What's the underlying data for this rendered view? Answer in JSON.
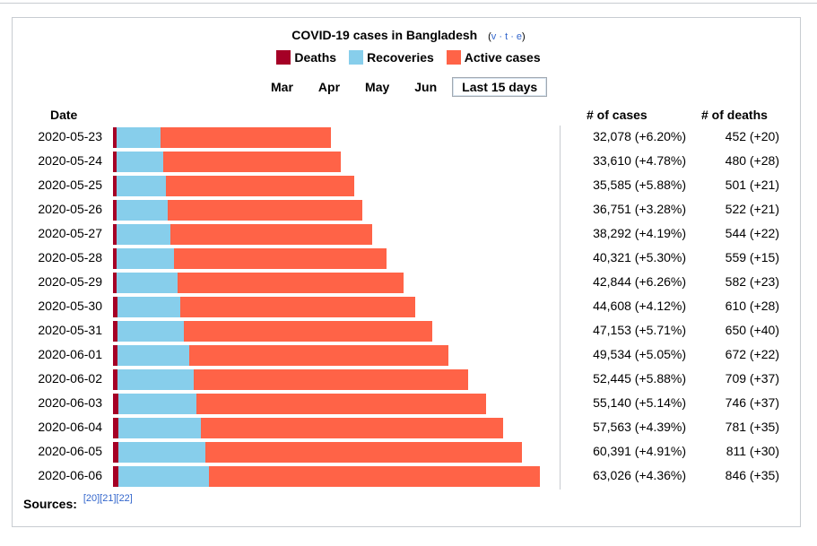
{
  "title": "COVID-19 cases in Bangladesh",
  "vte": {
    "open": "(",
    "v": "v",
    "t": "t",
    "e": "e",
    "sep": " · ",
    "close": ")"
  },
  "legend": {
    "deaths": "Deaths",
    "recoveries": "Recoveries",
    "active": "Active cases"
  },
  "colors": {
    "deaths": "#a50026",
    "recoveries": "#87ceeb",
    "active": "#ff6347"
  },
  "tabs": [
    {
      "label": "Mar",
      "active": false
    },
    {
      "label": "Apr",
      "active": false
    },
    {
      "label": "May",
      "active": false
    },
    {
      "label": "Jun",
      "active": false
    },
    {
      "label": "Last 15 days",
      "active": true
    }
  ],
  "headers": {
    "date": "Date",
    "cases": "# of cases",
    "deaths": "# of deaths"
  },
  "sources": {
    "label": "Sources:",
    "refs": "[20][21][22]"
  },
  "chart_data": {
    "type": "bar",
    "orientation": "horizontal",
    "stacked": true,
    "title": "COVID-19 cases in Bangladesh",
    "categories": [
      "2020-05-23",
      "2020-05-24",
      "2020-05-25",
      "2020-05-26",
      "2020-05-27",
      "2020-05-28",
      "2020-05-29",
      "2020-05-30",
      "2020-05-31",
      "2020-06-01",
      "2020-06-02",
      "2020-06-03",
      "2020-06-04",
      "2020-06-05",
      "2020-06-06"
    ],
    "series": [
      {
        "name": "Deaths",
        "values": [
          452,
          480,
          501,
          522,
          544,
          559,
          582,
          610,
          650,
          672,
          709,
          746,
          781,
          811,
          846
        ]
      },
      {
        "name": "Recoveries",
        "values": [
          6486,
          6901,
          7334,
          7579,
          7925,
          8425,
          9015,
          9375,
          9781,
          10597,
          11190,
          11590,
          12161,
          12804,
          13325
        ]
      },
      {
        "name": "Active cases",
        "values": [
          25140,
          26229,
          27750,
          28650,
          29823,
          31337,
          33247,
          34623,
          36722,
          38265,
          40546,
          42804,
          44621,
          46776,
          48855
        ]
      }
    ],
    "cases_labels": [
      "32,078 (+6.20%)",
      "33,610 (+4.78%)",
      "35,585 (+5.88%)",
      "36,751 (+3.28%)",
      "38,292 (+4.19%)",
      "40,321 (+5.30%)",
      "42,844 (+6.26%)",
      "44,608 (+4.12%)",
      "47,153 (+5.71%)",
      "49,534 (+5.05%)",
      "52,445 (+5.88%)",
      "55,140 (+5.14%)",
      "57,563 (+4.39%)",
      "60,391 (+4.91%)",
      "63,026 (+4.36%)"
    ],
    "deaths_labels": [
      "452 (+20)",
      "480 (+28)",
      "501 (+21)",
      "522 (+21)",
      "544 (+22)",
      "559 (+15)",
      "582 (+23)",
      "610 (+28)",
      "650 (+40)",
      "672 (+22)",
      "709 (+37)",
      "746 (+37)",
      "781 (+35)",
      "811 (+30)",
      "846 (+35)"
    ],
    "xlim": [
      0,
      63026
    ]
  }
}
